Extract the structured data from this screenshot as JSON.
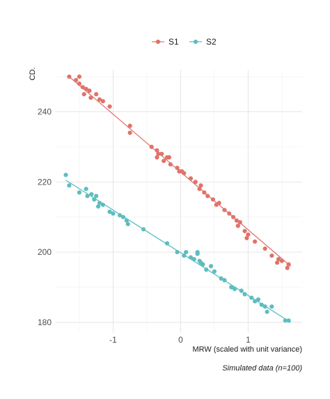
{
  "chart_data": {
    "type": "scatter",
    "xlabel": "MRW (scaled with unit variance)",
    "ylabel": "CD.",
    "caption": "Simulated data (n=100)",
    "xlim": [
      -1.85,
      1.8
    ],
    "ylim": [
      177,
      252
    ],
    "x_ticks": [
      -1,
      0,
      1
    ],
    "x_tick_labels": [
      "-1",
      "0",
      "1"
    ],
    "y_ticks": [
      180,
      200,
      220,
      240
    ],
    "y_tick_labels": [
      "180",
      "200",
      "220",
      "240"
    ],
    "grid": true,
    "legend_position": "top",
    "series": [
      {
        "name": "S1",
        "color": "#E0736B",
        "fit": [
          [
            -1.65,
            250
          ],
          [
            1.63,
            196
          ]
        ],
        "points": [
          [
            -1.65,
            250
          ],
          [
            -1.55,
            249
          ],
          [
            -1.5,
            250
          ],
          [
            -1.5,
            248
          ],
          [
            -1.45,
            247
          ],
          [
            -1.4,
            246.5
          ],
          [
            -1.43,
            245
          ],
          [
            -1.35,
            246
          ],
          [
            -1.33,
            244
          ],
          [
            -1.25,
            245
          ],
          [
            -1.2,
            243.5
          ],
          [
            -1.15,
            243
          ],
          [
            -1.05,
            241.5
          ],
          [
            -0.75,
            236
          ],
          [
            -0.75,
            234
          ],
          [
            -0.43,
            230
          ],
          [
            -0.35,
            229
          ],
          [
            -0.33,
            228
          ],
          [
            -0.35,
            227
          ],
          [
            -0.28,
            228
          ],
          [
            -0.2,
            227
          ],
          [
            -0.25,
            226
          ],
          [
            -0.17,
            227
          ],
          [
            -0.15,
            225
          ],
          [
            -0.05,
            224
          ],
          [
            -0.02,
            223
          ],
          [
            0.02,
            223
          ],
          [
            0.05,
            222.5
          ],
          [
            0.15,
            221
          ],
          [
            0.22,
            220
          ],
          [
            0.3,
            219
          ],
          [
            0.28,
            218
          ],
          [
            0.35,
            217
          ],
          [
            0.4,
            216
          ],
          [
            0.48,
            215
          ],
          [
            0.53,
            213.5
          ],
          [
            0.57,
            214
          ],
          [
            0.65,
            212
          ],
          [
            0.72,
            211
          ],
          [
            0.78,
            210
          ],
          [
            0.83,
            209
          ],
          [
            0.88,
            208.5
          ],
          [
            0.85,
            207.5
          ],
          [
            0.95,
            206
          ],
          [
            1.0,
            205
          ],
          [
            0.98,
            204
          ],
          [
            1.1,
            203
          ],
          [
            1.25,
            201
          ],
          [
            1.35,
            199
          ],
          [
            1.45,
            198
          ],
          [
            1.5,
            197.5
          ],
          [
            1.43,
            197
          ],
          [
            1.6,
            196.5
          ],
          [
            1.58,
            195.5
          ]
        ]
      },
      {
        "name": "S2",
        "color": "#5EBDBE",
        "fit": [
          [
            -1.7,
            220.5
          ],
          [
            1.63,
            180
          ]
        ],
        "points": [
          [
            -1.7,
            222
          ],
          [
            -1.65,
            219
          ],
          [
            -1.5,
            217
          ],
          [
            -1.4,
            218
          ],
          [
            -1.38,
            216
          ],
          [
            -1.32,
            216.5
          ],
          [
            -1.28,
            215
          ],
          [
            -1.25,
            216
          ],
          [
            -1.22,
            213
          ],
          [
            -1.2,
            214
          ],
          [
            -1.15,
            213.5
          ],
          [
            -1.05,
            211.5
          ],
          [
            -1.0,
            211
          ],
          [
            -0.9,
            210.5
          ],
          [
            -0.85,
            210
          ],
          [
            -0.8,
            209
          ],
          [
            -0.78,
            208
          ],
          [
            -0.55,
            206.5
          ],
          [
            -0.2,
            202.5
          ],
          [
            -0.05,
            200
          ],
          [
            0.05,
            199
          ],
          [
            0.08,
            200
          ],
          [
            0.15,
            198.5
          ],
          [
            0.2,
            198
          ],
          [
            0.25,
            199.5
          ],
          [
            0.25,
            200
          ],
          [
            0.28,
            197.5
          ],
          [
            0.3,
            197
          ],
          [
            0.33,
            196.5
          ],
          [
            0.38,
            195
          ],
          [
            0.45,
            196
          ],
          [
            0.5,
            194.5
          ],
          [
            0.6,
            192.5
          ],
          [
            0.65,
            192
          ],
          [
            0.75,
            190
          ],
          [
            0.8,
            189.5
          ],
          [
            0.9,
            189
          ],
          [
            0.95,
            188
          ],
          [
            1.05,
            187
          ],
          [
            1.1,
            186
          ],
          [
            1.15,
            186.5
          ],
          [
            1.2,
            185
          ],
          [
            1.25,
            184.5
          ],
          [
            1.28,
            183
          ],
          [
            1.35,
            184.5
          ],
          [
            1.55,
            180.5
          ],
          [
            1.6,
            180.5
          ]
        ]
      }
    ]
  }
}
